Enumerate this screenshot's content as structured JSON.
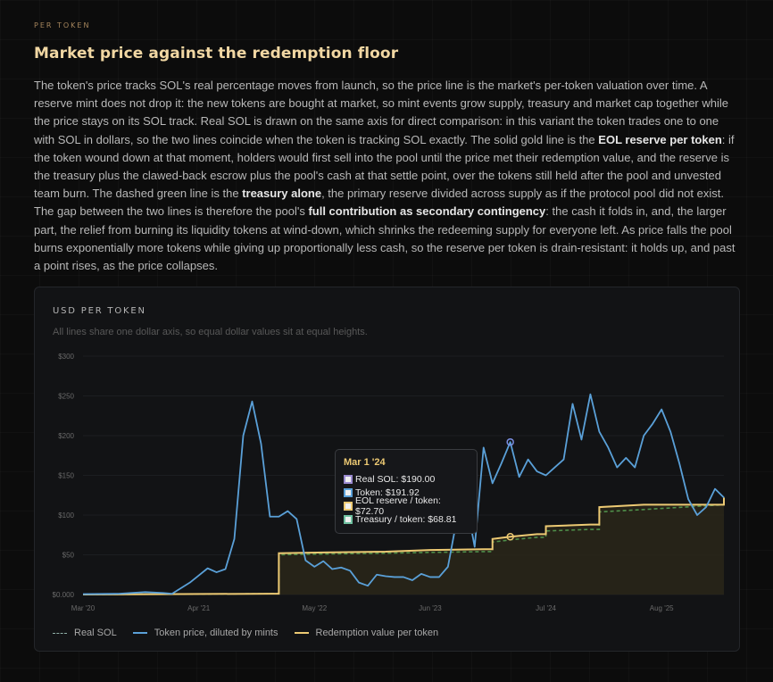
{
  "section": {
    "eyebrow": "PER TOKEN",
    "title": "Market price against the redemption floor",
    "paragraph": [
      {
        "text": "The token's price tracks SOL's real percentage moves from launch, so the price line is the market's per-token valuation over time. A reserve mint does not drop it: the new tokens are bought at market, so mint events grow supply, treasury and market cap together while the price stays on its SOL track. Real SOL is drawn on the same axis for direct comparison: in this variant the token trades one to one with SOL in dollars, so the two lines coincide when the token is tracking SOL exactly. The solid gold line is the ",
        "bold": false
      },
      {
        "text": "EOL reserve per token",
        "bold": true
      },
      {
        "text": ": if the token wound down at that moment, holders would first sell into the pool until the price met their redemption value, and the reserve is the treasury plus the clawed-back escrow plus the pool's cash at that settle point, over the tokens still held after the pool and unvested team burn. The dashed green line is the ",
        "bold": false
      },
      {
        "text": "treasury alone",
        "bold": true
      },
      {
        "text": ", the primary reserve divided across supply as if the protocol pool did not exist. The gap between the two lines is therefore the pool's ",
        "bold": false
      },
      {
        "text": "full contribution as secondary contingency",
        "bold": true
      },
      {
        "text": ": the cash it folds in, and, the larger part, the relief from burning its liquidity tokens at wind-down, which shrinks the redeeming supply for everyone left. As price falls the pool burns exponentially more tokens while giving up proportionally less cash, so the reserve per token is drain-resistant: it holds up, and past a point rises, as the price collapses.",
        "bold": false
      }
    ]
  },
  "panel": {
    "title": "USD PER TOKEN",
    "subtitle": "All lines share one dollar axis, so equal dollar values sit at equal heights."
  },
  "colors": {
    "real_sol": "#8fb0a8",
    "token": "#5aa0d8",
    "reserve": "#ecc973",
    "treasury": "#4f8f4a",
    "fill": "#2a2719",
    "grid": "#1c1e21",
    "tick": "#6a6a6a"
  },
  "tooltip": {
    "date": "Mar 1 '24",
    "rows": [
      {
        "label": "Real SOL: $190.00",
        "color": "#9a8ad0"
      },
      {
        "label": "Token: $191.92",
        "color": "#5aa0d8"
      },
      {
        "label": "EOL reserve / token: $72.70",
        "color": "#ecc973"
      },
      {
        "label": "Treasury / token: $68.81",
        "color": "#6fc0a0"
      }
    ]
  },
  "legend": [
    {
      "label": "Real SOL",
      "style": "dotted",
      "color": "#8fb0a8"
    },
    {
      "label": "Token price, diluted by mints",
      "style": "solid",
      "color": "#5aa0d8"
    },
    {
      "label": "Redemption value per token",
      "style": "solid",
      "color": "#ecc973"
    }
  ],
  "chart_data": {
    "type": "line",
    "title": "USD PER TOKEN",
    "ylim": [
      0,
      300
    ],
    "y_ticks": [
      "$0.000",
      "$50",
      "$100",
      "$150",
      "$200",
      "$250",
      "$300"
    ],
    "y_tick_values": [
      0,
      50,
      100,
      150,
      200,
      250,
      300
    ],
    "x_ticks": [
      "Mar '20",
      "Apr '21",
      "May '22",
      "Jun '23",
      "Jul '24",
      "Aug '25"
    ],
    "x_tick_dates": [
      "2020-03",
      "2021-04",
      "2022-05",
      "2023-06",
      "2024-07",
      "2025-08"
    ],
    "xlim": [
      "2020-03",
      "2026-03"
    ],
    "grid": true,
    "legend_position": "bottom",
    "highlight": {
      "x": "2024-03",
      "token": 191.92,
      "reserve": 72.7,
      "treasury": 68.81,
      "real_sol": 190.0
    },
    "series": [
      {
        "name": "Token price, diluted by mints",
        "x": [
          "2020-03",
          "2020-07",
          "2020-10",
          "2020-12",
          "2021-01",
          "2021-02",
          "2021-03",
          "2021-04",
          "2021-05",
          "2021-06",
          "2021-07",
          "2021-08",
          "2021-09",
          "2021-10",
          "2021-11",
          "2021-12",
          "2022-01",
          "2022-02",
          "2022-03",
          "2022-04",
          "2022-05",
          "2022-06",
          "2022-07",
          "2022-08",
          "2022-09",
          "2022-10",
          "2022-11",
          "2022-12",
          "2023-01",
          "2023-02",
          "2023-03",
          "2023-04",
          "2023-05",
          "2023-06",
          "2023-07",
          "2023-08",
          "2023-09",
          "2023-10",
          "2023-11",
          "2023-12",
          "2024-01",
          "2024-02",
          "2024-03",
          "2024-04",
          "2024-05",
          "2024-06",
          "2024-07",
          "2024-08",
          "2024-09",
          "2024-10",
          "2024-11",
          "2024-12",
          "2025-01",
          "2025-02",
          "2025-03",
          "2025-04",
          "2025-05",
          "2025-06",
          "2025-07",
          "2025-08",
          "2025-09",
          "2025-10",
          "2025-11",
          "2025-12",
          "2026-01",
          "2026-02",
          "2026-03"
        ],
        "values": [
          0.5,
          1,
          3,
          2,
          1,
          8,
          15,
          24,
          33,
          28,
          32,
          70,
          200,
          243,
          190,
          98,
          98,
          105,
          95,
          43,
          35,
          42,
          32,
          34,
          30,
          15,
          11,
          25,
          23,
          22,
          22,
          18,
          26,
          22,
          22,
          35,
          95,
          120,
          60,
          185,
          140,
          165,
          191.92,
          148,
          170,
          155,
          150,
          160,
          170,
          240,
          195,
          252,
          205,
          185,
          160,
          172,
          160,
          200,
          215,
          233,
          205,
          165,
          120,
          100,
          110,
          133,
          122
        ]
      },
      {
        "name": "Redemption value per token",
        "x": [
          "2020-03",
          "2021-12",
          "2022-01",
          "2022-06",
          "2023-01",
          "2023-06",
          "2023-12",
          "2024-01",
          "2024-03",
          "2024-06",
          "2024-07",
          "2024-12",
          "2025-01",
          "2025-06",
          "2026-03"
        ],
        "values": [
          0,
          1,
          52,
          53,
          54,
          56,
          57,
          70,
          72.7,
          76,
          86,
          88,
          110,
          113,
          122
        ]
      },
      {
        "name": "Treasury / token",
        "x": [
          "2020-03",
          "2021-12",
          "2022-01",
          "2022-06",
          "2023-01",
          "2023-06",
          "2023-12",
          "2024-01",
          "2024-03",
          "2024-06",
          "2024-07",
          "2024-12",
          "2025-01",
          "2025-06",
          "2026-03"
        ],
        "values": [
          0,
          1,
          50,
          51,
          52,
          53,
          54,
          66,
          68.81,
          72,
          80,
          82,
          104,
          107,
          113
        ]
      }
    ]
  }
}
